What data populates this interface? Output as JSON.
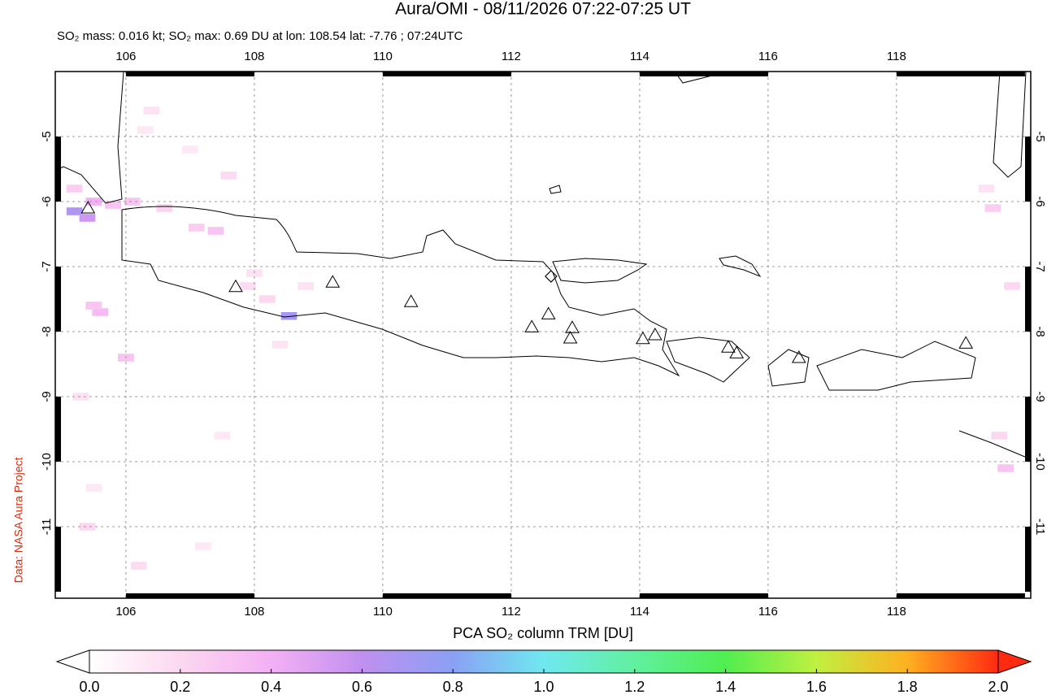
{
  "chart_data": {
    "type": "map",
    "title": "Aura/OMI - 08/11/2026 07:22-07:25 UT",
    "subtitle": "SO₂ mass: 0.016 kt; SO₂ max: 0.69 DU at lon: 108.54 lat: -7.76 ; 07:24UTC",
    "side_label": "Data: NASA Aura Project",
    "xlim": [
      104.9,
      120.09
    ],
    "ylim": [
      -12.1,
      -4.0
    ],
    "xticks": [
      106,
      108,
      110,
      112,
      114,
      116,
      118
    ],
    "yticks": [
      -5,
      -6,
      -7,
      -8,
      -9,
      -10,
      -11
    ],
    "grid": true,
    "volcanoes": {
      "lon": [
        105.41,
        107.71,
        109.22,
        110.44,
        112.32,
        112.58,
        112.95,
        112.92,
        114.05,
        114.24,
        115.38,
        115.51,
        116.48,
        119.08
      ],
      "lat": [
        -6.1,
        -7.31,
        -7.24,
        -7.54,
        -7.93,
        -7.73,
        -7.94,
        -8.1,
        -8.11,
        -8.05,
        -8.24,
        -8.33,
        -8.4,
        -8.18
      ]
    },
    "marker": {
      "lon": 112.62,
      "lat": -7.15
    },
    "so2_cells": {
      "lon": [
        105.2,
        105.4,
        105.2,
        105.5,
        105.8,
        106.1,
        106.6,
        107.1,
        107.4,
        108.54,
        108.2,
        107.9,
        105.6,
        106.0,
        105.3,
        105.5,
        106.4,
        107.0,
        107.6,
        108.0,
        108.4,
        108.8,
        105.4,
        106.2,
        107.2,
        105.5,
        106.3,
        107.5,
        119.5,
        119.8,
        119.6,
        119.4,
        119.7
      ],
      "lat": [
        -6.15,
        -6.25,
        -5.8,
        -6.0,
        -6.05,
        -6.0,
        -6.1,
        -6.4,
        -6.45,
        -7.76,
        -7.5,
        -7.3,
        -7.7,
        -8.4,
        -9.0,
        -10.4,
        -4.6,
        -5.2,
        -5.6,
        -7.1,
        -8.2,
        -7.3,
        -11.0,
        -11.6,
        -11.3,
        -7.6,
        -4.9,
        -9.6,
        -6.1,
        -7.3,
        -9.6,
        -5.8,
        -10.1
      ],
      "values": [
        0.66,
        0.55,
        0.25,
        0.4,
        0.3,
        0.3,
        0.22,
        0.25,
        0.3,
        0.69,
        0.2,
        0.18,
        0.35,
        0.3,
        0.15,
        0.12,
        0.15,
        0.12,
        0.18,
        0.15,
        0.14,
        0.15,
        0.2,
        0.18,
        0.12,
        0.3,
        0.12,
        0.12,
        0.25,
        0.2,
        0.2,
        0.15,
        0.3
      ]
    },
    "colorbar": {
      "label": "PCA SO₂ column TRM [DU]",
      "lim": [
        0,
        2
      ],
      "ticks": [
        {
          "value": 0,
          "label": "0.0"
        },
        {
          "value": 0.2,
          "label": "0.2"
        },
        {
          "value": 0.4,
          "label": "0.4"
        },
        {
          "value": 0.6,
          "label": "0.6"
        },
        {
          "value": 0.8,
          "label": "0.8"
        },
        {
          "value": 1,
          "label": "1.0"
        },
        {
          "value": 1.2,
          "label": "1.2"
        },
        {
          "value": 1.4,
          "label": "1.4"
        },
        {
          "value": 1.6,
          "label": "1.6"
        },
        {
          "value": 1.8,
          "label": "1.8"
        },
        {
          "value": 2,
          "label": "2.0"
        }
      ],
      "colors": [
        "#ffffff",
        "#fcd8f0",
        "#f4b0f4",
        "#c090f0",
        "#8aa0f4",
        "#70e8f0",
        "#60f0a0",
        "#50ee50",
        "#c0f040",
        "#ffb020",
        "#ff2a10"
      ]
    }
  }
}
